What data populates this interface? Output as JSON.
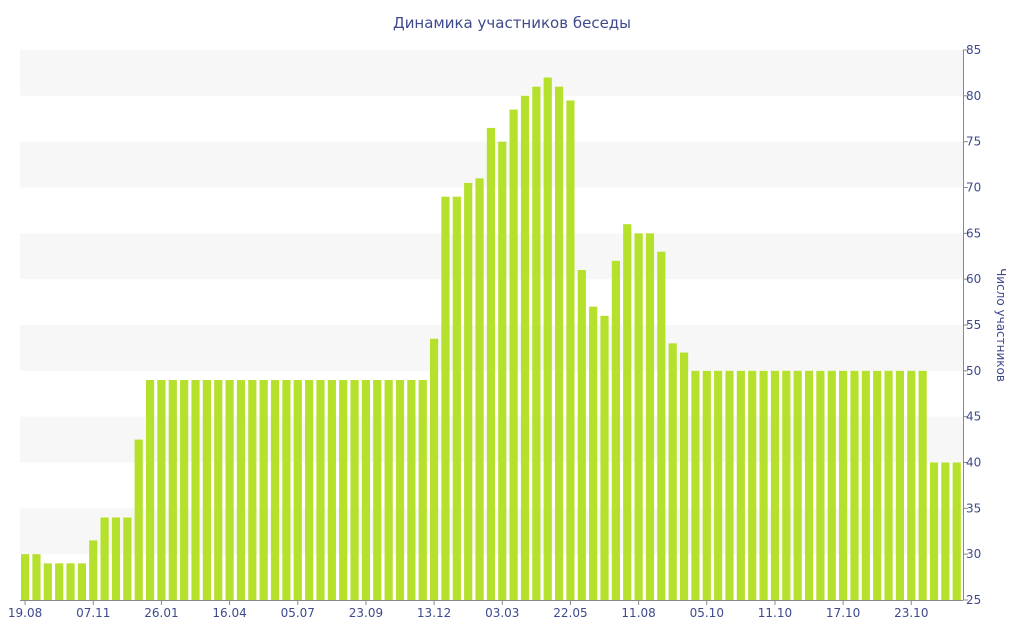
{
  "chart_data": {
    "type": "bar",
    "title": "Динамика участников беседы",
    "xlabel": "",
    "ylabel": "Число участников",
    "ylim": [
      25,
      85
    ],
    "y_ticks": [
      25,
      30,
      35,
      40,
      45,
      50,
      55,
      60,
      65,
      70,
      75,
      80,
      85
    ],
    "x_tick_labels": [
      {
        "index": 0,
        "label": "19.08"
      },
      {
        "index": 6,
        "label": "07.11"
      },
      {
        "index": 12,
        "label": "26.01"
      },
      {
        "index": 18,
        "label": "16.04"
      },
      {
        "index": 24,
        "label": "05.07"
      },
      {
        "index": 30,
        "label": "23.09"
      },
      {
        "index": 36,
        "label": "13.12"
      },
      {
        "index": 42,
        "label": "03.03"
      },
      {
        "index": 48,
        "label": "22.05"
      },
      {
        "index": 54,
        "label": "11.08"
      },
      {
        "index": 60,
        "label": "05.10"
      },
      {
        "index": 66,
        "label": "11.10"
      },
      {
        "index": 72,
        "label": "17.10"
      },
      {
        "index": 78,
        "label": "23.10"
      }
    ],
    "values": [
      30,
      30,
      29,
      29,
      29,
      29,
      31.5,
      34,
      34,
      34,
      42.5,
      49,
      49,
      49,
      49,
      49,
      49,
      49,
      49,
      49,
      49,
      49,
      49,
      49,
      49,
      49,
      49,
      49,
      49,
      49,
      49,
      49,
      49,
      49,
      49,
      49,
      53.5,
      69,
      69,
      70.5,
      71,
      76.5,
      75,
      78.5,
      80,
      81,
      82,
      81,
      79.5,
      61,
      57,
      56,
      62,
      66,
      65,
      65,
      63,
      53,
      52,
      50,
      50,
      50,
      50,
      50,
      50,
      50,
      50,
      50,
      50,
      50,
      50,
      50,
      50,
      50,
      50,
      50,
      50,
      50,
      50,
      50,
      40,
      40,
      40
    ],
    "y_axis_position": "right",
    "grid": "alternating horizontal bands",
    "colors": {
      "bar": "#b5e02b",
      "text": "#3e4a8c",
      "band": "#f7f7f7",
      "axis": "#888888"
    }
  }
}
